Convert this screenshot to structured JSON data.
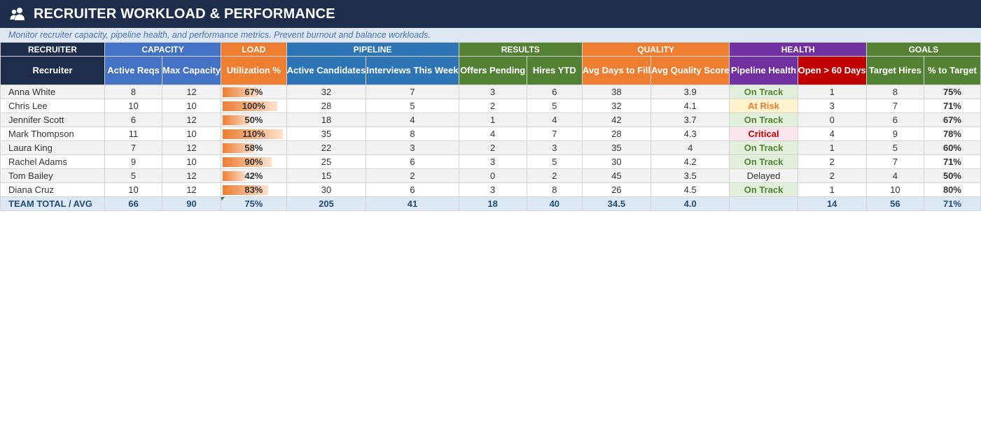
{
  "title": "RECRUITER WORKLOAD & PERFORMANCE",
  "subtitle": "Monitor recruiter capacity, pipeline health, and performance metrics. Prevent burnout and balance workloads.",
  "groups": {
    "recruiter": "RECRUITER",
    "capacity": "CAPACITY",
    "load": "LOAD",
    "pipeline": "PIPELINE",
    "results": "RESULTS",
    "quality": "QUALITY",
    "health": "HEALTH",
    "goals": "GOALS"
  },
  "columns": {
    "recruiter": "Recruiter",
    "active_reqs": "Active Reqs",
    "max_capacity": "Max Capacity",
    "utilization": "Utilization %",
    "active_candidates": "Active Candidates",
    "interviews_week": "Interviews This Week",
    "offers_pending": "Offers Pending",
    "hires_ytd": "Hires YTD",
    "avg_days_fill": "Avg Days to Fill",
    "avg_quality": "Avg Quality Score",
    "pipeline_health": "Pipeline Health",
    "open_60": "Open > 60 Days",
    "target_hires": "Target Hires",
    "pct_target": "% to Target"
  },
  "rows": [
    {
      "name": "Anna White",
      "active_reqs": "8",
      "max_capacity": "12",
      "utilization": "67%",
      "util_level": 0.67,
      "active_candidates": "32",
      "interviews_week": "7",
      "offers_pending": "3",
      "hires_ytd": "6",
      "avg_days_fill": "38",
      "avg_quality": "3.9",
      "pipeline_health": "On Track",
      "health_status": "on",
      "open_60": "1",
      "target_hires": "8",
      "pct_target": "75%"
    },
    {
      "name": "Chris Lee",
      "active_reqs": "10",
      "max_capacity": "10",
      "utilization": "100%",
      "util_level": 1.0,
      "active_candidates": "28",
      "interviews_week": "5",
      "offers_pending": "2",
      "hires_ytd": "5",
      "avg_days_fill": "32",
      "avg_quality": "4.1",
      "pipeline_health": "At Risk",
      "health_status": "risk",
      "open_60": "3",
      "target_hires": "7",
      "pct_target": "71%"
    },
    {
      "name": "Jennifer Scott",
      "active_reqs": "6",
      "max_capacity": "12",
      "utilization": "50%",
      "util_level": 0.5,
      "active_candidates": "18",
      "interviews_week": "4",
      "offers_pending": "1",
      "hires_ytd": "4",
      "avg_days_fill": "42",
      "avg_quality": "3.7",
      "pipeline_health": "On Track",
      "health_status": "on",
      "open_60": "0",
      "target_hires": "6",
      "pct_target": "67%"
    },
    {
      "name": "Mark Thompson",
      "active_reqs": "11",
      "max_capacity": "10",
      "utilization": "110%",
      "util_level": 1.1,
      "active_candidates": "35",
      "interviews_week": "8",
      "offers_pending": "4",
      "hires_ytd": "7",
      "avg_days_fill": "28",
      "avg_quality": "4.3",
      "pipeline_health": "Critical",
      "health_status": "crit",
      "open_60": "4",
      "target_hires": "9",
      "pct_target": "78%"
    },
    {
      "name": "Laura King",
      "active_reqs": "7",
      "max_capacity": "12",
      "utilization": "58%",
      "util_level": 0.58,
      "active_candidates": "22",
      "interviews_week": "3",
      "offers_pending": "2",
      "hires_ytd": "3",
      "avg_days_fill": "35",
      "avg_quality": "4",
      "pipeline_health": "On Track",
      "health_status": "on",
      "open_60": "1",
      "target_hires": "5",
      "pct_target": "60%"
    },
    {
      "name": "Rachel Adams",
      "active_reqs": "9",
      "max_capacity": "10",
      "utilization": "90%",
      "util_level": 0.9,
      "active_candidates": "25",
      "interviews_week": "6",
      "offers_pending": "3",
      "hires_ytd": "5",
      "avg_days_fill": "30",
      "avg_quality": "4.2",
      "pipeline_health": "On Track",
      "health_status": "on",
      "open_60": "2",
      "target_hires": "7",
      "pct_target": "71%"
    },
    {
      "name": "Tom Bailey",
      "active_reqs": "5",
      "max_capacity": "12",
      "utilization": "42%",
      "util_level": 0.42,
      "active_candidates": "15",
      "interviews_week": "2",
      "offers_pending": "0",
      "hires_ytd": "2",
      "avg_days_fill": "45",
      "avg_quality": "3.5",
      "pipeline_health": "Delayed",
      "health_status": "plain",
      "open_60": "2",
      "target_hires": "4",
      "pct_target": "50%"
    },
    {
      "name": "Diana Cruz",
      "active_reqs": "10",
      "max_capacity": "12",
      "utilization": "83%",
      "util_level": 0.83,
      "active_candidates": "30",
      "interviews_week": "6",
      "offers_pending": "3",
      "hires_ytd": "8",
      "avg_days_fill": "26",
      "avg_quality": "4.5",
      "pipeline_health": "On Track",
      "health_status": "on",
      "open_60": "1",
      "target_hires": "10",
      "pct_target": "80%"
    }
  ],
  "total": {
    "name": "TEAM TOTAL / AVG",
    "active_reqs": "66",
    "max_capacity": "90",
    "utilization": "75%",
    "active_candidates": "205",
    "interviews_week": "41",
    "offers_pending": "18",
    "hires_ytd": "40",
    "avg_days_fill": "34.5",
    "avg_quality": "4.0",
    "pipeline_health": "",
    "open_60": "14",
    "target_hires": "56",
    "pct_target": "71%"
  },
  "colors": {
    "title_bg": "#1f2d4d",
    "capacity": "#4472c4",
    "load": "#ed7d31",
    "pipeline": "#2e75b6",
    "results": "#548235",
    "health_pipeline": "#7030a0",
    "health_open": "#c00000",
    "on_track": "#548235",
    "at_risk": "#ed7d31",
    "critical": "#c00000"
  },
  "icons": {
    "title_icon": "users-icon"
  }
}
